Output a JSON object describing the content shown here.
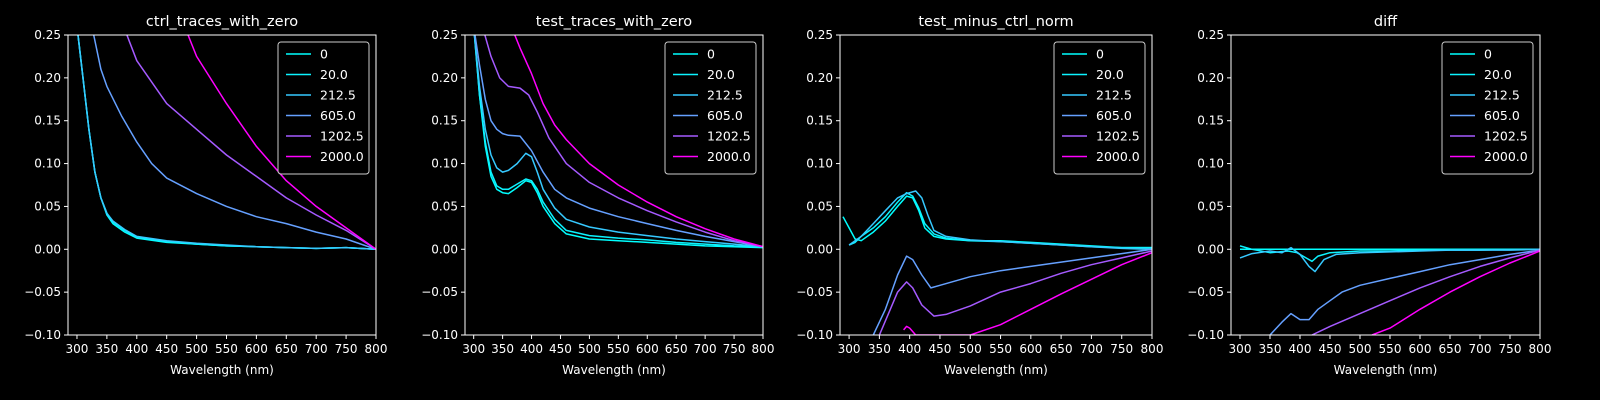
{
  "figure": {
    "background": "#000000",
    "foreground": "#ffffff"
  },
  "chart_data": [
    {
      "type": "line",
      "title": "ctrl_traces_with_zero",
      "xlabel": "Wavelength (nm)",
      "ylabel": "",
      "xlim": [
        285,
        800
      ],
      "ylim": [
        -0.1,
        0.25
      ],
      "xticks": [
        300,
        350,
        400,
        450,
        500,
        550,
        600,
        650,
        700,
        750,
        800
      ],
      "yticks": [
        -0.1,
        -0.05,
        0.0,
        0.05,
        0.1,
        0.15,
        0.2,
        0.25
      ],
      "ytick_labels": [
        "−0.10",
        "−0.05",
        "0.00",
        "0.05",
        "0.10",
        "0.15",
        "0.20",
        "0.25"
      ],
      "legend": "top-right",
      "series": [
        {
          "name": "0",
          "color": "#00ffff",
          "x": [
            300,
            310,
            320,
            330,
            340,
            350,
            360,
            380,
            400,
            450,
            500,
            550,
            600,
            650,
            700,
            750,
            800
          ],
          "y": [
            0.26,
            0.2,
            0.14,
            0.09,
            0.06,
            0.04,
            0.03,
            0.02,
            0.013,
            0.008,
            0.006,
            0.004,
            0.003,
            0.002,
            0.001,
            0.002,
            0.0
          ]
        },
        {
          "name": "20.0",
          "color": "#0cf3ff",
          "x": [
            300,
            310,
            320,
            330,
            340,
            350,
            360,
            380,
            400,
            450,
            500,
            550,
            600,
            650,
            700,
            750,
            800
          ],
          "y": [
            0.26,
            0.2,
            0.14,
            0.09,
            0.06,
            0.042,
            0.032,
            0.022,
            0.014,
            0.009,
            0.006,
            0.004,
            0.003,
            0.002,
            0.001,
            0.002,
            0.0
          ]
        },
        {
          "name": "212.5",
          "color": "#36c9ff",
          "x": [
            300,
            310,
            320,
            330,
            340,
            350,
            360,
            380,
            400,
            450,
            500,
            550,
            600,
            650,
            700,
            750,
            800
          ],
          "y": [
            0.26,
            0.2,
            0.14,
            0.09,
            0.06,
            0.042,
            0.033,
            0.023,
            0.015,
            0.01,
            0.007,
            0.005,
            0.003,
            0.002,
            0.001,
            0.002,
            0.0
          ]
        },
        {
          "name": "605.0",
          "color": "#65a0ff",
          "x": [
            325,
            340,
            350,
            375,
            400,
            425,
            450,
            500,
            550,
            600,
            650,
            700,
            750,
            800
          ],
          "y": [
            0.26,
            0.21,
            0.19,
            0.155,
            0.125,
            0.1,
            0.083,
            0.065,
            0.05,
            0.038,
            0.03,
            0.02,
            0.012,
            0.0
          ]
        },
        {
          "name": "1202.5",
          "color": "#a55aff",
          "x": [
            378,
            400,
            450,
            500,
            550,
            600,
            650,
            700,
            750,
            800
          ],
          "y": [
            0.26,
            0.22,
            0.17,
            0.14,
            0.11,
            0.085,
            0.06,
            0.04,
            0.022,
            0.0
          ]
        },
        {
          "name": "2000.0",
          "color": "#ff00ff",
          "x": [
            480,
            500,
            550,
            600,
            650,
            700,
            750,
            800
          ],
          "y": [
            0.26,
            0.225,
            0.17,
            0.12,
            0.08,
            0.05,
            0.025,
            0.0
          ]
        }
      ]
    },
    {
      "type": "line",
      "title": "test_traces_with_zero",
      "xlabel": "Wavelength (nm)",
      "ylabel": "",
      "xlim": [
        285,
        800
      ],
      "ylim": [
        -0.1,
        0.25
      ],
      "xticks": [
        300,
        350,
        400,
        450,
        500,
        550,
        600,
        650,
        700,
        750,
        800
      ],
      "yticks": [
        -0.1,
        -0.05,
        0.0,
        0.05,
        0.1,
        0.15,
        0.2,
        0.25
      ],
      "ytick_labels": [
        "−0.10",
        "−0.05",
        "0.00",
        "0.05",
        "0.10",
        "0.15",
        "0.20",
        "0.25"
      ],
      "legend": "top-right",
      "series": [
        {
          "name": "0",
          "color": "#00ffff",
          "x": [
            300,
            310,
            320,
            330,
            340,
            350,
            360,
            375,
            390,
            400,
            410,
            420,
            440,
            460,
            500,
            550,
            600,
            650,
            700,
            750,
            800
          ],
          "y": [
            0.26,
            0.18,
            0.12,
            0.085,
            0.07,
            0.066,
            0.065,
            0.072,
            0.08,
            0.078,
            0.066,
            0.05,
            0.03,
            0.018,
            0.012,
            0.01,
            0.008,
            0.006,
            0.004,
            0.003,
            0.002
          ]
        },
        {
          "name": "20.0",
          "color": "#0cf3ff",
          "x": [
            300,
            310,
            320,
            330,
            340,
            350,
            360,
            375,
            390,
            400,
            410,
            420,
            440,
            460,
            500,
            550,
            600,
            650,
            700,
            750,
            800
          ],
          "y": [
            0.26,
            0.18,
            0.125,
            0.09,
            0.074,
            0.07,
            0.07,
            0.076,
            0.082,
            0.08,
            0.07,
            0.055,
            0.035,
            0.022,
            0.016,
            0.013,
            0.011,
            0.008,
            0.006,
            0.004,
            0.003
          ]
        },
        {
          "name": "212.5",
          "color": "#36c9ff",
          "x": [
            300,
            310,
            320,
            330,
            340,
            350,
            360,
            375,
            390,
            400,
            410,
            420,
            440,
            460,
            500,
            550,
            600,
            650,
            700,
            750,
            800
          ],
          "y": [
            0.26,
            0.19,
            0.14,
            0.11,
            0.095,
            0.09,
            0.092,
            0.1,
            0.112,
            0.108,
            0.09,
            0.07,
            0.048,
            0.035,
            0.026,
            0.02,
            0.016,
            0.012,
            0.009,
            0.006,
            0.003
          ]
        },
        {
          "name": "605.0",
          "color": "#65a0ff",
          "x": [
            300,
            310,
            320,
            330,
            340,
            350,
            360,
            380,
            400,
            420,
            440,
            460,
            500,
            550,
            600,
            650,
            700,
            750,
            800
          ],
          "y": [
            0.26,
            0.215,
            0.175,
            0.15,
            0.14,
            0.135,
            0.133,
            0.132,
            0.115,
            0.09,
            0.07,
            0.06,
            0.048,
            0.038,
            0.03,
            0.022,
            0.015,
            0.009,
            0.003
          ]
        },
        {
          "name": "1202.5",
          "color": "#a55aff",
          "x": [
            315,
            330,
            345,
            360,
            380,
            395,
            410,
            430,
            460,
            500,
            550,
            600,
            650,
            700,
            750,
            800
          ],
          "y": [
            0.26,
            0.225,
            0.2,
            0.19,
            0.188,
            0.18,
            0.16,
            0.13,
            0.1,
            0.078,
            0.06,
            0.045,
            0.032,
            0.02,
            0.01,
            0.003
          ]
        },
        {
          "name": "2000.0",
          "color": "#ff00ff",
          "x": [
            365,
            380,
            400,
            420,
            440,
            460,
            500,
            550,
            600,
            650,
            700,
            750,
            800
          ],
          "y": [
            0.26,
            0.235,
            0.205,
            0.17,
            0.145,
            0.128,
            0.1,
            0.075,
            0.055,
            0.038,
            0.024,
            0.012,
            0.003
          ]
        }
      ]
    },
    {
      "type": "line",
      "title": "test_minus_ctrl_norm",
      "xlabel": "Wavelength (nm)",
      "ylabel": "",
      "xlim": [
        285,
        800
      ],
      "ylim": [
        -0.1,
        0.25
      ],
      "xticks": [
        300,
        350,
        400,
        450,
        500,
        550,
        600,
        650,
        700,
        750,
        800
      ],
      "yticks": [
        -0.1,
        -0.05,
        0.0,
        0.05,
        0.1,
        0.15,
        0.2,
        0.25
      ],
      "ytick_labels": [
        "−0.10",
        "−0.05",
        "0.00",
        "0.05",
        "0.10",
        "0.15",
        "0.20",
        "0.25"
      ],
      "legend": "top-right",
      "series": [
        {
          "name": "0",
          "color": "#00ffff",
          "x": [
            290,
            300,
            310,
            320,
            340,
            360,
            380,
            395,
            405,
            415,
            425,
            440,
            460,
            500,
            550,
            600,
            650,
            700,
            750,
            800
          ],
          "y": [
            0.038,
            0.025,
            0.012,
            0.01,
            0.02,
            0.033,
            0.05,
            0.062,
            0.06,
            0.045,
            0.025,
            0.015,
            0.012,
            0.01,
            0.01,
            0.008,
            0.006,
            0.004,
            0.002,
            0.002
          ]
        },
        {
          "name": "20.0",
          "color": "#0cf3ff",
          "x": [
            300,
            310,
            320,
            340,
            360,
            380,
            395,
            405,
            415,
            425,
            440,
            460,
            500,
            550,
            600,
            650,
            700,
            750,
            800
          ],
          "y": [
            0.005,
            0.008,
            0.015,
            0.025,
            0.038,
            0.055,
            0.066,
            0.062,
            0.048,
            0.03,
            0.018,
            0.013,
            0.01,
            0.009,
            0.007,
            0.005,
            0.003,
            0.002,
            0.002
          ]
        },
        {
          "name": "212.5",
          "color": "#36c9ff",
          "x": [
            300,
            310,
            320,
            340,
            360,
            380,
            395,
            410,
            420,
            430,
            440,
            460,
            500,
            550,
            600,
            650,
            700,
            750,
            800
          ],
          "y": [
            0.005,
            0.01,
            0.015,
            0.03,
            0.045,
            0.06,
            0.065,
            0.068,
            0.06,
            0.04,
            0.022,
            0.015,
            0.011,
            0.009,
            0.007,
            0.005,
            0.003,
            0.001,
            0.0
          ]
        },
        {
          "name": "605.0",
          "color": "#65a0ff",
          "x": [
            340,
            360,
            380,
            395,
            405,
            420,
            435,
            450,
            500,
            550,
            600,
            650,
            700,
            750,
            800
          ],
          "y": [
            -0.1,
            -0.07,
            -0.03,
            -0.008,
            -0.012,
            -0.03,
            -0.045,
            -0.042,
            -0.032,
            -0.025,
            -0.02,
            -0.015,
            -0.01,
            -0.005,
            0.0
          ]
        },
        {
          "name": "1202.5",
          "color": "#a55aff",
          "x": [
            350,
            365,
            380,
            395,
            405,
            420,
            440,
            460,
            500,
            550,
            600,
            650,
            700,
            750,
            800
          ],
          "y": [
            -0.1,
            -0.075,
            -0.05,
            -0.038,
            -0.045,
            -0.065,
            -0.078,
            -0.076,
            -0.066,
            -0.05,
            -0.04,
            -0.028,
            -0.018,
            -0.01,
            -0.002
          ]
        },
        {
          "name": "2000.0",
          "color": "#ff00ff",
          "x": [
            390,
            395,
            400,
            410,
            420,
            500,
            550,
            600,
            650,
            700,
            750,
            800
          ],
          "y": [
            -0.094,
            -0.09,
            -0.092,
            -0.1,
            -0.1,
            -0.1,
            -0.088,
            -0.07,
            -0.052,
            -0.035,
            -0.018,
            -0.004
          ]
        }
      ]
    },
    {
      "type": "line",
      "title": "diff",
      "xlabel": "Wavelength (nm)",
      "ylabel": "",
      "xlim": [
        285,
        800
      ],
      "ylim": [
        -0.1,
        0.25
      ],
      "xticks": [
        300,
        350,
        400,
        450,
        500,
        550,
        600,
        650,
        700,
        750,
        800
      ],
      "yticks": [
        -0.1,
        -0.05,
        0.0,
        0.05,
        0.1,
        0.15,
        0.2,
        0.25
      ],
      "ytick_labels": [
        "−0.10",
        "−0.05",
        "0.00",
        "0.05",
        "0.10",
        "0.15",
        "0.20",
        "0.25"
      ],
      "legend": "top-right",
      "series": [
        {
          "name": "0",
          "color": "#00ffff",
          "x": [
            300,
            800
          ],
          "y": [
            0.0,
            0.0
          ]
        },
        {
          "name": "20.0",
          "color": "#0cf3ff",
          "x": [
            300,
            320,
            350,
            380,
            395,
            410,
            420,
            430,
            450,
            500,
            550,
            600,
            650,
            700,
            750,
            800
          ],
          "y": [
            0.004,
            0.0,
            -0.004,
            -0.002,
            -0.004,
            -0.01,
            -0.014,
            -0.008,
            -0.004,
            -0.002,
            -0.002,
            -0.001,
            -0.001,
            -0.001,
            0.0,
            0.0
          ]
        },
        {
          "name": "212.5",
          "color": "#36c9ff",
          "x": [
            300,
            320,
            350,
            370,
            385,
            400,
            415,
            425,
            440,
            460,
            500,
            550,
            600,
            650,
            700,
            750,
            800
          ],
          "y": [
            -0.01,
            -0.005,
            -0.002,
            -0.004,
            0.002,
            -0.006,
            -0.02,
            -0.026,
            -0.012,
            -0.006,
            -0.004,
            -0.003,
            -0.002,
            -0.001,
            -0.001,
            -0.001,
            0.0
          ]
        },
        {
          "name": "605.0",
          "color": "#65a0ff",
          "x": [
            350,
            370,
            385,
            400,
            415,
            430,
            450,
            470,
            500,
            550,
            600,
            650,
            700,
            750,
            800
          ],
          "y": [
            -0.1,
            -0.085,
            -0.075,
            -0.082,
            -0.082,
            -0.07,
            -0.06,
            -0.05,
            -0.042,
            -0.034,
            -0.026,
            -0.018,
            -0.012,
            -0.006,
            -0.001
          ]
        },
        {
          "name": "1202.5",
          "color": "#a55aff",
          "x": [
            420,
            450,
            500,
            550,
            600,
            650,
            700,
            750,
            800
          ],
          "y": [
            -0.1,
            -0.09,
            -0.075,
            -0.06,
            -0.045,
            -0.032,
            -0.02,
            -0.01,
            -0.001
          ]
        },
        {
          "name": "2000.0",
          "color": "#ff00ff",
          "x": [
            520,
            550,
            600,
            650,
            700,
            750,
            800
          ],
          "y": [
            -0.1,
            -0.092,
            -0.07,
            -0.05,
            -0.032,
            -0.016,
            -0.002
          ]
        }
      ]
    }
  ]
}
